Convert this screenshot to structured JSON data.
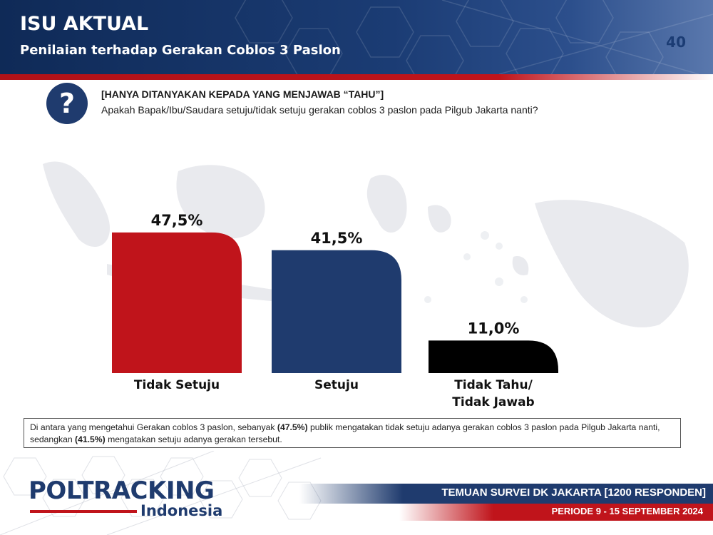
{
  "header": {
    "section_title": "ISU AKTUAL",
    "subtitle": "Penilaian terhadap Gerakan Coblos 3 Paslon",
    "page_number": "40"
  },
  "question": {
    "icon": "question-mark-icon",
    "note": "[HANYA DITANYAKAN KEPADA YANG MENJAWAB “TAHU”]",
    "text": "Apakah Bapak/Ibu/Saudara setuju/tidak setuju gerakan coblos 3 paslon pada Pilgub Jakarta nanti?"
  },
  "chart_data": {
    "type": "bar",
    "categories": [
      "Tidak Setuju",
      "Setuju",
      "Tidak Tahu/ Tidak Jawab"
    ],
    "values": [
      47.5,
      41.5,
      11.0
    ],
    "value_labels": [
      "47,5%",
      "41,5%",
      "11,0%"
    ],
    "colors": [
      "#c0141b",
      "#1f3b6e",
      "#000000"
    ],
    "grid": false,
    "title": "",
    "xlabel": "",
    "ylabel": ""
  },
  "summary": {
    "part1": "Di antara yang mengetahui Gerakan coblos 3 paslon, sebanyak ",
    "value1": "(47.5%)",
    "part2": " publik mengatakan tidak setuju adanya gerakan coblos 3 paslon pada Pilgub Jakarta nanti, sedangkan ",
    "value2": "(41.5%)",
    "part3": " mengatakan setuju adanya gerakan tersebut."
  },
  "footer": {
    "logo_main": "POLTRACKING",
    "logo_sub": "Indonesia",
    "survey": "TEMUAN SURVEI DK JAKARTA [1200 RESPONDEN]",
    "period": "PERIODE 9 - 15 SEPTEMBER 2024"
  },
  "colors": {
    "navy": "#1f3b6e",
    "red": "#c0141b"
  }
}
